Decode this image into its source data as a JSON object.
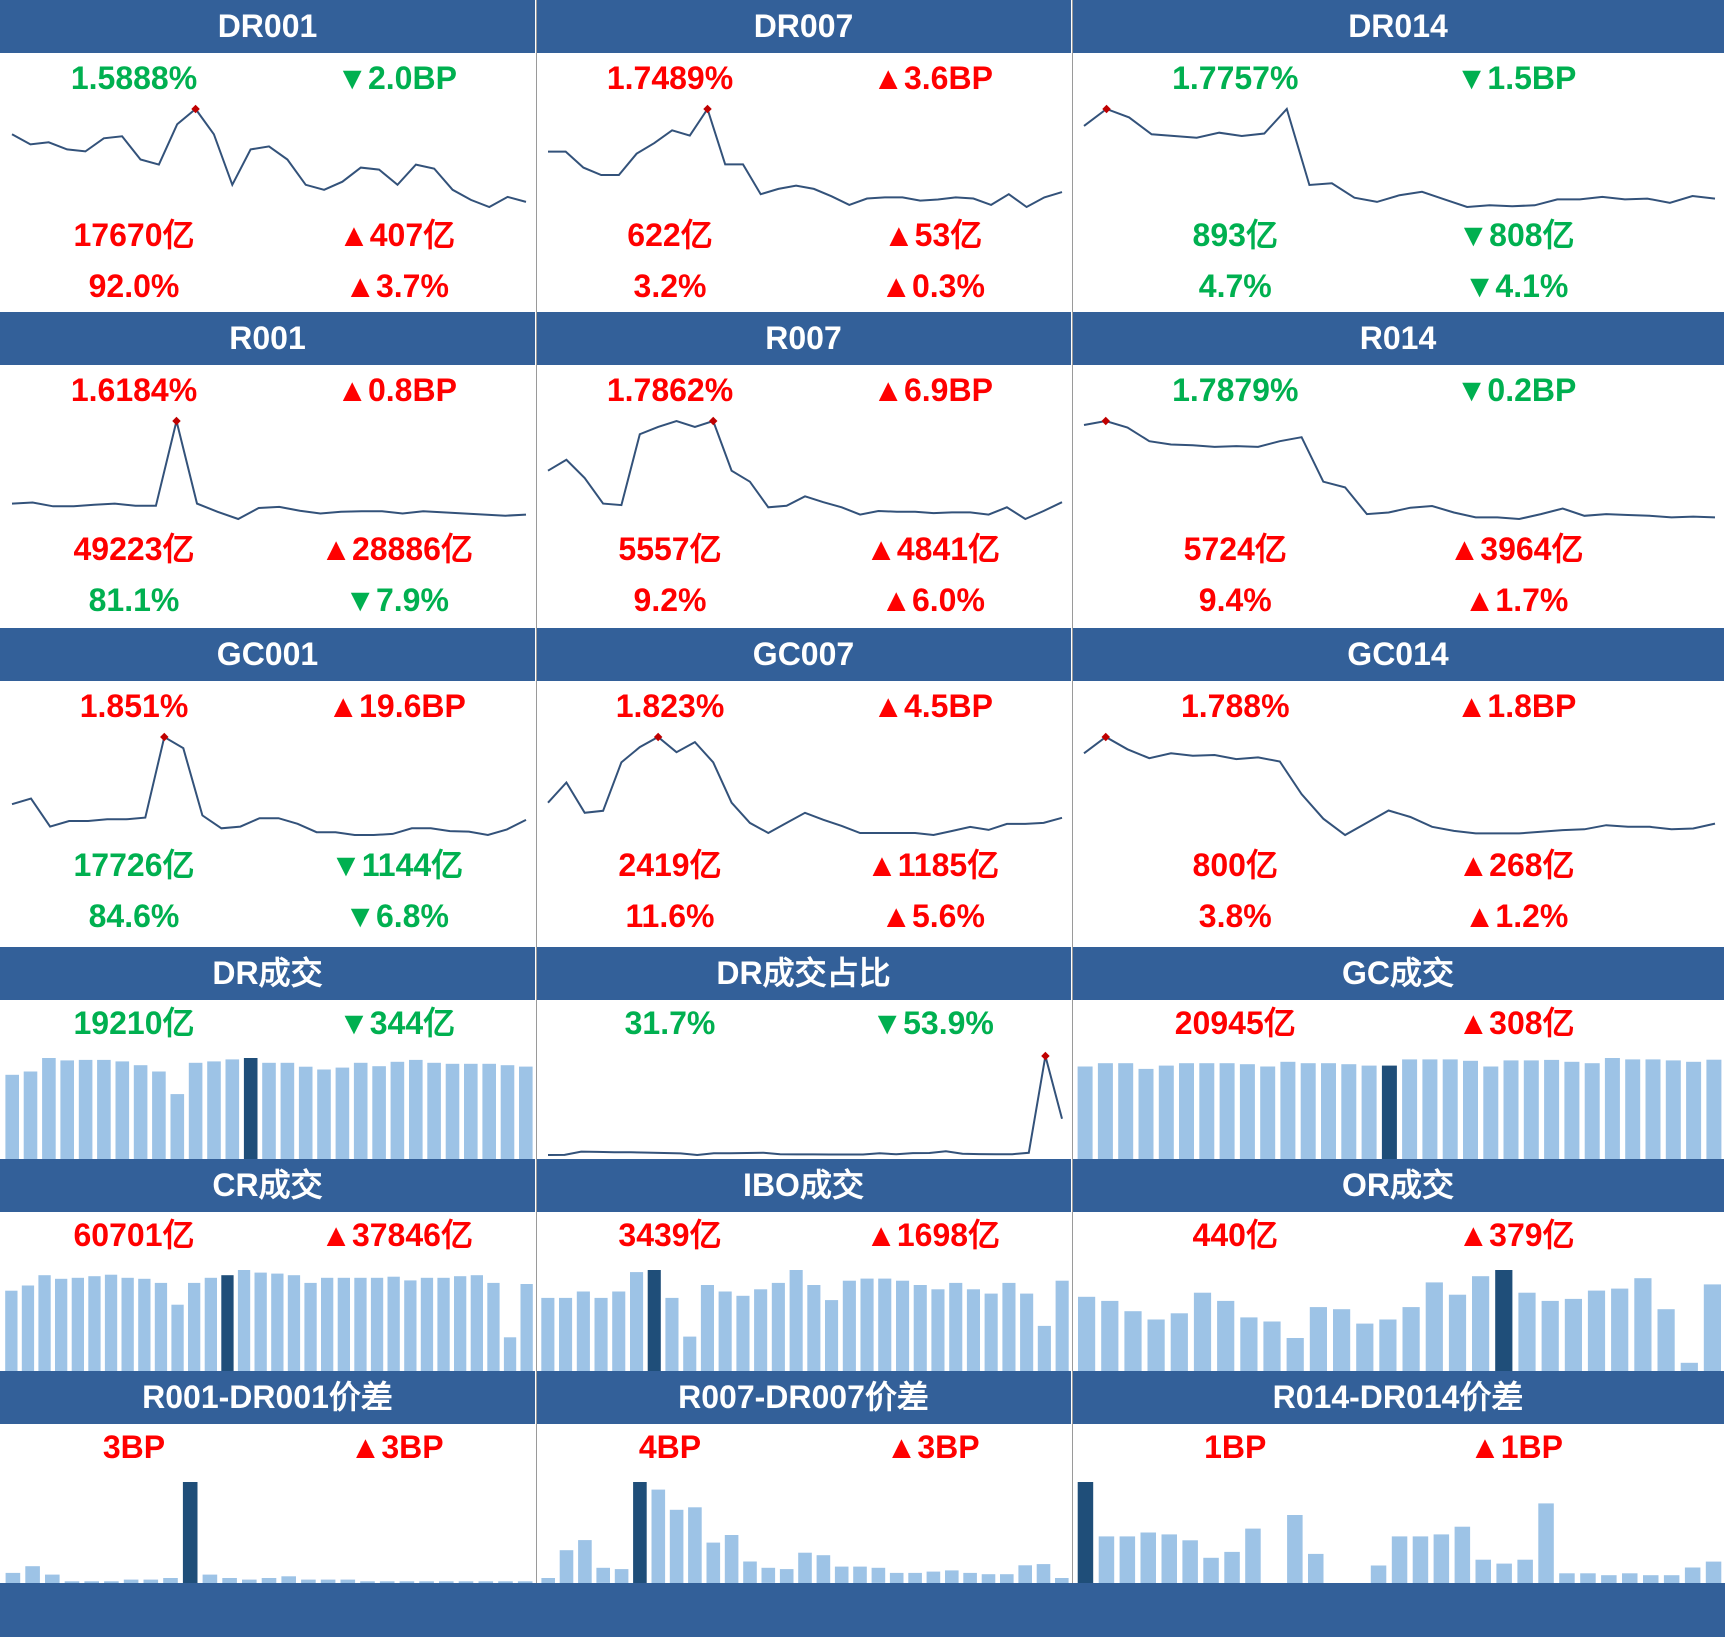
{
  "colors": {
    "header_bg": "#336099",
    "up": "#ff0000",
    "down": "#00b050",
    "line": "#33527a",
    "bar": "#9dc3e6",
    "bar_highlight": "#1f4e79",
    "marker": "#c00000"
  },
  "panels": [
    {
      "title": "DR001",
      "rate": "1.5888%",
      "rate_chg": "▼2.0BP",
      "rate_color": "down",
      "rate_chg_color": "down",
      "vol": "17670亿",
      "vol_chg": "▲407亿",
      "vol_color": "up",
      "vol_chg_color": "up",
      "share": "92.0%",
      "share_chg": "▲3.7%",
      "share_color": "up",
      "share_chg_color": "up"
    },
    {
      "title": "DR007",
      "rate": "1.7489%",
      "rate_chg": "▲3.6BP",
      "rate_color": "up",
      "rate_chg_color": "up",
      "vol": "622亿",
      "vol_chg": "▲53亿",
      "vol_color": "up",
      "vol_chg_color": "up",
      "share": "3.2%",
      "share_chg": "▲0.3%",
      "share_color": "up",
      "share_chg_color": "up"
    },
    {
      "title": "DR014",
      "rate": "1.7757%",
      "rate_chg": "▼1.5BP",
      "rate_color": "down",
      "rate_chg_color": "down",
      "vol": "893亿",
      "vol_chg": "▼808亿",
      "vol_color": "down",
      "vol_chg_color": "down",
      "share": "4.7%",
      "share_chg": "▼4.1%",
      "share_color": "down",
      "share_chg_color": "down"
    },
    {
      "title": "R001",
      "rate": "1.6184%",
      "rate_chg": "▲0.8BP",
      "rate_color": "up",
      "rate_chg_color": "up",
      "vol": "49223亿",
      "vol_chg": "▲28886亿",
      "vol_color": "up",
      "vol_chg_color": "up",
      "share": "81.1%",
      "share_chg": "▼7.9%",
      "share_color": "down",
      "share_chg_color": "down"
    },
    {
      "title": "R007",
      "rate": "1.7862%",
      "rate_chg": "▲6.9BP",
      "rate_color": "up",
      "rate_chg_color": "up",
      "vol": "5557亿",
      "vol_chg": "▲4841亿",
      "vol_color": "up",
      "vol_chg_color": "up",
      "share": "9.2%",
      "share_chg": "▲6.0%",
      "share_color": "up",
      "share_chg_color": "up"
    },
    {
      "title": "R014",
      "rate": "1.7879%",
      "rate_chg": "▼0.2BP",
      "rate_color": "down",
      "rate_chg_color": "down",
      "vol": "5724亿",
      "vol_chg": "▲3964亿",
      "vol_color": "up",
      "vol_chg_color": "up",
      "share": "9.4%",
      "share_chg": "▲1.7%",
      "share_color": "up",
      "share_chg_color": "up"
    },
    {
      "title": "GC001",
      "rate": "1.851%",
      "rate_chg": "▲19.6BP",
      "rate_color": "up",
      "rate_chg_color": "up",
      "vol": "17726亿",
      "vol_chg": "▼1144亿",
      "vol_color": "down",
      "vol_chg_color": "down",
      "share": "84.6%",
      "share_chg": "▼6.8%",
      "share_color": "down",
      "share_chg_color": "down"
    },
    {
      "title": "GC007",
      "rate": "1.823%",
      "rate_chg": "▲4.5BP",
      "rate_color": "up",
      "rate_chg_color": "up",
      "vol": "2419亿",
      "vol_chg": "▲1185亿",
      "vol_color": "up",
      "vol_chg_color": "up",
      "share": "11.6%",
      "share_chg": "▲5.6%",
      "share_color": "up",
      "share_chg_color": "up"
    },
    {
      "title": "GC014",
      "rate": "1.788%",
      "rate_chg": "▲1.8BP",
      "rate_color": "up",
      "rate_chg_color": "up",
      "vol": "800亿",
      "vol_chg": "▲268亿",
      "vol_color": "up",
      "vol_chg_color": "up",
      "share": "3.8%",
      "share_chg": "▲1.2%",
      "share_color": "up",
      "share_chg_color": "up"
    },
    {
      "title": "DR成交",
      "val": "19210亿",
      "chg": "▼344亿",
      "val_color": "down",
      "chg_color": "down"
    },
    {
      "title": "DR成交占比",
      "val": "31.7%",
      "chg": "▼53.9%",
      "val_color": "down",
      "chg_color": "down"
    },
    {
      "title": "GC成交",
      "val": "20945亿",
      "chg": "▲308亿",
      "val_color": "up",
      "chg_color": "up"
    },
    {
      "title": "CR成交",
      "val": "60701亿",
      "chg": "▲37846亿",
      "val_color": "up",
      "chg_color": "up"
    },
    {
      "title": "IBO成交",
      "val": "3439亿",
      "chg": "▲1698亿",
      "val_color": "up",
      "chg_color": "up"
    },
    {
      "title": "OR成交",
      "val": "440亿",
      "chg": "▲379亿",
      "val_color": "up",
      "chg_color": "up"
    },
    {
      "title": "R001-DR001价差",
      "val": "3BP",
      "chg": "▲3BP",
      "val_color": "up",
      "chg_color": "up"
    },
    {
      "title": "R007-DR007价差",
      "val": "4BP",
      "chg": "▲3BP",
      "val_color": "up",
      "chg_color": "up"
    },
    {
      "title": "R014-DR014价差",
      "val": "1BP",
      "chg": "▲1BP",
      "val_color": "up",
      "chg_color": "up"
    }
  ],
  "chart_data": [
    {
      "panel": "DR001",
      "type": "line",
      "values": [
        1.6,
        1.59,
        1.592,
        1.585,
        1.583,
        1.596,
        1.598,
        1.575,
        1.57,
        1.61,
        1.625,
        1.6,
        1.55,
        1.585,
        1.588,
        1.575,
        1.55,
        1.545,
        1.553,
        1.567,
        1.565,
        1.55,
        1.57,
        1.566,
        1.545,
        1.535,
        1.528,
        1.538,
        1.533
      ],
      "peak_index": 10
    },
    {
      "panel": "DR007",
      "type": "line",
      "values": [
        1.73,
        1.73,
        1.715,
        1.708,
        1.708,
        1.728,
        1.738,
        1.75,
        1.745,
        1.77,
        1.718,
        1.718,
        1.69,
        1.695,
        1.698,
        1.695,
        1.688,
        1.68,
        1.686,
        1.687,
        1.687,
        1.684,
        1.685,
        1.687,
        1.686,
        1.68,
        1.69,
        1.678,
        1.687,
        1.692
      ],
      "peak_index": 9
    },
    {
      "panel": "DR014",
      "type": "line",
      "values": [
        1.79,
        1.81,
        1.8,
        1.78,
        1.778,
        1.776,
        1.782,
        1.778,
        1.781,
        1.81,
        1.72,
        1.722,
        1.705,
        1.7,
        1.708,
        1.712,
        1.703,
        1.694,
        1.696,
        1.695,
        1.696,
        1.703,
        1.703,
        1.706,
        1.703,
        1.704,
        1.699,
        1.707,
        1.704
      ],
      "peak_index": 1
    },
    {
      "panel": "R001",
      "type": "line",
      "values": [
        1.64,
        1.642,
        1.635,
        1.635,
        1.638,
        1.64,
        1.636,
        1.636,
        1.79,
        1.64,
        1.625,
        1.612,
        1.632,
        1.634,
        1.627,
        1.622,
        1.625,
        1.626,
        1.626,
        1.622,
        1.626,
        1.624,
        1.622,
        1.62,
        1.618,
        1.62
      ],
      "peak_index": 8
    },
    {
      "panel": "R007",
      "type": "line",
      "values": [
        1.74,
        1.755,
        1.73,
        1.695,
        1.693,
        1.79,
        1.8,
        1.808,
        1.8,
        1.808,
        1.74,
        1.725,
        1.69,
        1.692,
        1.705,
        1.697,
        1.69,
        1.68,
        1.685,
        1.684,
        1.684,
        1.682,
        1.683,
        1.683,
        1.68,
        1.69,
        1.674,
        1.685,
        1.697
      ],
      "peak_index": 9
    },
    {
      "panel": "R014",
      "type": "line",
      "values": [
        1.83,
        1.835,
        1.827,
        1.81,
        1.806,
        1.805,
        1.803,
        1.804,
        1.803,
        1.81,
        1.815,
        1.76,
        1.753,
        1.72,
        1.722,
        1.728,
        1.73,
        1.722,
        1.716,
        1.716,
        1.714,
        1.72,
        1.727,
        1.718,
        1.72,
        1.719,
        1.718,
        1.716,
        1.717,
        1.716
      ],
      "peak_index": 1
    },
    {
      "panel": "GC001",
      "type": "line",
      "values": [
        1.75,
        1.76,
        1.71,
        1.72,
        1.72,
        1.723,
        1.723,
        1.726,
        1.87,
        1.85,
        1.73,
        1.707,
        1.71,
        1.725,
        1.725,
        1.715,
        1.7,
        1.7,
        1.695,
        1.695,
        1.697,
        1.707,
        1.707,
        1.702,
        1.701,
        1.695,
        1.705,
        1.722
      ],
      "peak_index": 8
    },
    {
      "panel": "GC007",
      "type": "line",
      "values": [
        1.73,
        1.75,
        1.72,
        1.722,
        1.77,
        1.785,
        1.795,
        1.78,
        1.79,
        1.77,
        1.73,
        1.71,
        1.7,
        1.71,
        1.72,
        1.713,
        1.707,
        1.7,
        1.7,
        1.7,
        1.7,
        1.698,
        1.702,
        1.706,
        1.703,
        1.709,
        1.709,
        1.71,
        1.715
      ],
      "peak_index": 6
    },
    {
      "panel": "GC014",
      "type": "line",
      "values": [
        1.79,
        1.81,
        1.795,
        1.784,
        1.79,
        1.787,
        1.788,
        1.783,
        1.785,
        1.78,
        1.74,
        1.71,
        1.69,
        1.705,
        1.72,
        1.712,
        1.7,
        1.695,
        1.692,
        1.692,
        1.692,
        1.694,
        1.696,
        1.697,
        1.702,
        1.7,
        1.7,
        1.697,
        1.698,
        1.704
      ],
      "peak_index": 1
    },
    {
      "panel": "DR成交",
      "type": "bar",
      "values": [
        17500,
        18200,
        21000,
        20500,
        20600,
        20600,
        20300,
        19500,
        18200,
        13500,
        20000,
        20300,
        20700,
        21000,
        20000,
        20000,
        19200,
        18600,
        19000,
        20000,
        19300,
        20200,
        20600,
        20000,
        19800,
        19800,
        19800,
        19500,
        19210
      ],
      "highlight_index": 13
    },
    {
      "panel": "DR成交占比",
      "type": "line",
      "values": [
        0.6,
        0.7,
        3.5,
        3.3,
        2.9,
        2.9,
        2.7,
        2.3,
        2.0,
        0.6,
        2.1,
        2.1,
        2.3,
        2.6,
        1.3,
        1.1,
        1.1,
        1.0,
        1.0,
        1.0,
        2.1,
        1.2,
        2.2,
        2.3,
        3.8,
        1.6,
        1.4,
        1.3,
        1.3,
        2.5,
        85.6,
        31.7
      ],
      "peak_index": 30
    },
    {
      "panel": "GC成交",
      "type": "bar",
      "values": [
        19500,
        20200,
        20200,
        19000,
        19700,
        20200,
        20200,
        20200,
        20000,
        19500,
        20500,
        20200,
        20200,
        20000,
        19700,
        19700,
        21000,
        21000,
        21000,
        20700,
        19500,
        20800,
        20800,
        20900,
        20500,
        20200,
        21300,
        21000,
        21000,
        20800,
        20500,
        20945
      ],
      "highlight_index": 15
    },
    {
      "panel": "CR成交",
      "type": "bar",
      "values": [
        15500,
        16500,
        18500,
        17800,
        18000,
        18300,
        18600,
        18000,
        17800,
        17000,
        12800,
        17000,
        18000,
        18500,
        19500,
        19000,
        18800,
        18500,
        17000,
        18000,
        18000,
        18000,
        18000,
        18200,
        17500,
        18000,
        18000,
        18300,
        18500,
        17000,
        6500,
        16800
      ],
      "highlight_index": 13
    },
    {
      "panel": "IBO成交",
      "type": "bar",
      "values": [
        3400,
        3400,
        3700,
        3400,
        3700,
        4600,
        4700,
        3400,
        1600,
        4000,
        3700,
        3500,
        3800,
        4100,
        4700,
        4000,
        3300,
        4200,
        4300,
        4300,
        4200,
        4000,
        3800,
        4100,
        3800,
        3600,
        4100,
        3600,
        2100,
        4200
      ],
      "highlight_index": 6
    },
    {
      "panel": "OR成交",
      "type": "bar",
      "values": [
        3600,
        3400,
        2900,
        2500,
        2800,
        3800,
        3400,
        2600,
        2400,
        1600,
        3100,
        3000,
        2300,
        2500,
        3100,
        4300,
        3700,
        4600,
        4900,
        3800,
        3400,
        3500,
        3900,
        4000,
        4500,
        3000,
        400,
        4200
      ],
      "highlight_index": 18
    },
    {
      "panel": "R001-DR001价差",
      "type": "bar",
      "values": [
        0.3,
        0.5,
        0.25,
        0.05,
        0.05,
        0.05,
        0.1,
        0.1,
        0.15,
        3.0,
        0.25,
        0.15,
        0.1,
        0.15,
        0.2,
        0.1,
        0.1,
        0.1,
        0.05,
        0.05,
        0.05,
        0.05,
        0.05,
        0.05,
        0.05,
        0.05,
        0.05
      ],
      "highlight_index": 9
    },
    {
      "panel": "R007-DR007价差",
      "type": "bar",
      "values": [
        0.2,
        1.3,
        1.7,
        0.6,
        0.55,
        4.0,
        3.7,
        2.9,
        3.0,
        1.6,
        1.9,
        0.85,
        0.6,
        0.55,
        1.2,
        1.1,
        0.65,
        0.65,
        0.6,
        0.4,
        0.4,
        0.45,
        0.5,
        0.4,
        0.35,
        0.35,
        0.7,
        0.75,
        0.2
      ],
      "highlight_index": 5
    },
    {
      "panel": "R014-DR014价差",
      "type": "bar",
      "values": [
        5.2,
        2.4,
        2.4,
        2.6,
        2.5,
        2.2,
        1.3,
        1.6,
        2.8,
        0,
        3.5,
        1.5,
        0,
        0,
        0.9,
        2.4,
        2.4,
        2.5,
        2.9,
        1.2,
        1.0,
        1.2,
        4.1,
        0.5,
        0.5,
        0.4,
        0.5,
        0.4,
        0.4,
        0.8,
        1.1
      ],
      "highlight_index": 0
    }
  ]
}
